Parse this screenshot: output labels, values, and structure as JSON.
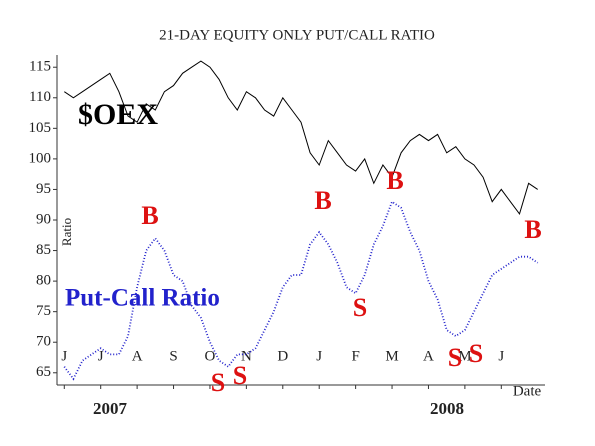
{
  "chart_data": {
    "type": "line",
    "title": "21-DAY EQUITY ONLY PUT/CALL RATIO",
    "y_label": "Ratio",
    "x_label": "Date",
    "years": [
      "2007",
      "2008"
    ],
    "x": [
      0,
      0.25,
      0.5,
      0.75,
      1,
      1.25,
      1.5,
      1.75,
      2,
      2.25,
      2.5,
      2.75,
      3,
      3.25,
      3.5,
      3.75,
      4,
      4.25,
      4.5,
      4.75,
      5,
      5.25,
      5.5,
      5.75,
      6,
      6.25,
      6.5,
      6.75,
      7,
      7.25,
      7.5,
      7.75,
      8,
      8.25,
      8.5,
      8.75,
      9,
      9.25,
      9.5,
      9.75,
      10,
      10.25,
      10.5,
      10.75,
      11,
      11.25,
      11.5,
      11.75,
      12,
      12.25,
      12.5,
      12.75,
      13
    ],
    "series": [
      {
        "name": "$OEX",
        "color": "#000000",
        "style": "solid",
        "values": [
          111,
          110,
          111,
          112,
          113,
          114,
          111,
          107,
          106,
          109,
          108,
          111,
          112,
          114,
          115,
          116,
          115,
          113,
          110,
          108,
          111,
          110,
          108,
          107,
          110,
          108,
          106,
          101,
          99,
          103,
          101,
          99,
          98,
          100,
          96,
          99,
          97,
          101,
          103,
          104,
          103,
          104,
          101,
          102,
          100,
          99,
          97,
          93,
          95,
          93,
          91,
          96,
          95
        ]
      },
      {
        "name": "Put-Call Ratio",
        "color": "#2222cc",
        "style": "dotted",
        "values": [
          66,
          64,
          67,
          68,
          69,
          68,
          68,
          71,
          79,
          85,
          87,
          85,
          81,
          80,
          76,
          74,
          70,
          67,
          66,
          68,
          68,
          69,
          72,
          75,
          79,
          81,
          81,
          86,
          88,
          86,
          83,
          79,
          78,
          81,
          86,
          89,
          93,
          92,
          88,
          85,
          80,
          77,
          72,
          71,
          72,
          75,
          78,
          81,
          82,
          83,
          84,
          84,
          83
        ]
      }
    ],
    "annotations": [
      "B",
      "B",
      "B",
      "B",
      "S",
      "S",
      "S",
      "S",
      "S"
    ],
    "annotation_color": "#dd1111",
    "xlim": [
      -0.2,
      13.2
    ],
    "xticks": [
      {
        "value": 0,
        "label": "J"
      },
      {
        "value": 1,
        "label": "J"
      },
      {
        "value": 2,
        "label": "A"
      },
      {
        "value": 3,
        "label": "S"
      },
      {
        "value": 4,
        "label": "O"
      },
      {
        "value": 5,
        "label": "N"
      },
      {
        "value": 6,
        "label": "D"
      },
      {
        "value": 7,
        "label": "J"
      },
      {
        "value": 8,
        "label": "F"
      },
      {
        "value": 9,
        "label": "M"
      },
      {
        "value": 10,
        "label": "A"
      },
      {
        "value": 11,
        "label": "M"
      },
      {
        "value": 12,
        "label": "J"
      }
    ],
    "ylim": [
      63,
      117
    ],
    "yticks": [
      65,
      70,
      75,
      80,
      85,
      90,
      95,
      100,
      105,
      110,
      115
    ]
  }
}
